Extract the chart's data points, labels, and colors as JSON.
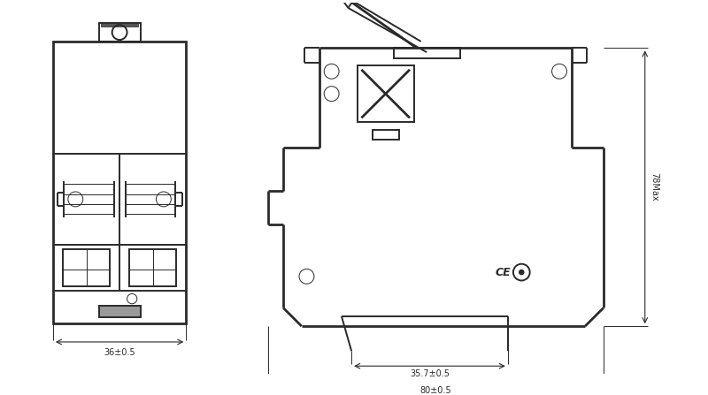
{
  "bg_color": "#ffffff",
  "line_color": "#2a2a2a",
  "lw": 1.4,
  "lw_thin": 0.7,
  "lw_thick": 2.0,
  "fig_width": 8.0,
  "fig_height": 4.47,
  "dim_label_36": "36±0.5",
  "dim_label_357": "35.7±0.5",
  "dim_label_80": "80±0.5",
  "dim_label_78": "78Max",
  "font_size_dim": 7.0
}
